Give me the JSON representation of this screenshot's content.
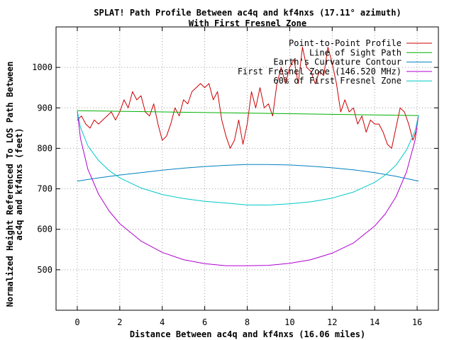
{
  "chart_data": {
    "type": "line",
    "title": [
      "SPLAT! Path Profile Between ac4q and kf4nxs (17.11° azimuth)",
      "With First Fresnel Zone"
    ],
    "xlabel": "Distance Between ac4q and kf4nxs (16.06 miles)",
    "ylabel": [
      "Normalized Height Referenced To LOS Path Between",
      "ac4q and kf4nxs (feet)"
    ],
    "xlim": [
      -1,
      17
    ],
    "ylim": [
      400,
      1100
    ],
    "xticks": [
      0,
      2,
      4,
      6,
      8,
      10,
      12,
      14,
      16
    ],
    "yticks": [
      500,
      600,
      700,
      800,
      900,
      1000
    ],
    "grid": true,
    "legend_position": "top-right",
    "series": [
      {
        "name": "Point-to-Point Profile",
        "color": "#cc0000",
        "x": [
          0,
          0.2,
          0.4,
          0.6,
          0.8,
          1.0,
          1.2,
          1.4,
          1.6,
          1.8,
          2.0,
          2.2,
          2.4,
          2.6,
          2.8,
          3.0,
          3.2,
          3.4,
          3.6,
          3.8,
          4.0,
          4.2,
          4.4,
          4.6,
          4.8,
          5.0,
          5.2,
          5.4,
          5.6,
          5.8,
          6.0,
          6.2,
          6.4,
          6.6,
          6.8,
          7.0,
          7.2,
          7.4,
          7.6,
          7.8,
          8.0,
          8.2,
          8.4,
          8.6,
          8.8,
          9.0,
          9.2,
          9.4,
          9.6,
          9.8,
          10.0,
          10.2,
          10.4,
          10.6,
          10.8,
          11.0,
          11.2,
          11.4,
          11.6,
          11.8,
          12.0,
          12.2,
          12.4,
          12.6,
          12.8,
          13.0,
          13.2,
          13.4,
          13.6,
          13.8,
          14.0,
          14.2,
          14.4,
          14.6,
          14.8,
          15.0,
          15.2,
          15.4,
          15.6,
          15.8,
          16.0
        ],
        "y": [
          870,
          880,
          860,
          850,
          870,
          860,
          870,
          880,
          890,
          870,
          890,
          920,
          900,
          940,
          920,
          930,
          890,
          880,
          910,
          860,
          820,
          830,
          860,
          900,
          880,
          920,
          910,
          940,
          950,
          960,
          950,
          960,
          920,
          940,
          870,
          830,
          800,
          820,
          870,
          810,
          860,
          940,
          900,
          950,
          900,
          910,
          880,
          960,
          1000,
          960,
          1000,
          1020,
          960,
          1050,
          1000,
          990,
          960,
          990,
          980,
          1050,
          1010,
          960,
          890,
          920,
          890,
          900,
          860,
          880,
          840,
          870,
          860,
          860,
          840,
          810,
          800,
          850,
          900,
          890,
          860,
          820,
          850
        ]
      },
      {
        "name": "Line of Sight Path",
        "color": "#00b000",
        "x": [
          0,
          16.06
        ],
        "y": [
          893,
          881
        ]
      },
      {
        "name": "Earth's Curvature Contour",
        "color": "#0080c0",
        "x": [
          0,
          1,
          2,
          3,
          4,
          5,
          6,
          7,
          8,
          9,
          10,
          11,
          12,
          13,
          14,
          15,
          16.06
        ],
        "y": [
          719,
          727,
          734,
          740,
          746,
          751,
          755,
          758,
          760,
          760,
          759,
          756,
          752,
          747,
          740,
          731,
          719
        ]
      },
      {
        "name": "First Fresnel Zone (146.520 MHz)",
        "color": "#b000d0",
        "x": [
          0,
          0.15,
          0.5,
          1,
          1.5,
          2,
          3,
          4,
          5,
          6,
          7,
          8,
          9,
          10,
          11,
          12,
          13,
          14,
          14.5,
          15,
          15.5,
          15.9,
          16.06
        ],
        "y": [
          893,
          825,
          748,
          687,
          645,
          614,
          571,
          543,
          525,
          515,
          510,
          510,
          511,
          516,
          525,
          541,
          566,
          608,
          638,
          680,
          742,
          820,
          881
        ]
      },
      {
        "name": "60% of First Fresnel Zone",
        "color": "#00c8c8",
        "x": [
          0,
          0.15,
          0.5,
          1,
          1.5,
          2,
          3,
          4,
          5,
          6,
          7,
          8,
          9,
          10,
          11,
          12,
          13,
          14,
          14.5,
          15,
          15.5,
          15.9,
          16.06
        ],
        "y": [
          893,
          852,
          806,
          770,
          745,
          727,
          702,
          686,
          676,
          669,
          665,
          660,
          660,
          663,
          668,
          677,
          692,
          716,
          734,
          758,
          796,
          843,
          881
        ]
      }
    ]
  }
}
